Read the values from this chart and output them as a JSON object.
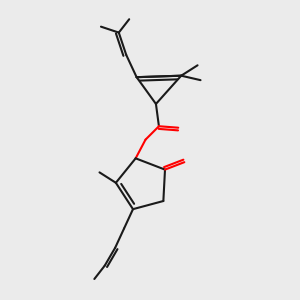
{
  "bg_color": "#ebebeb",
  "bond_color": "#1a1a1a",
  "oxygen_color": "#ff0000",
  "line_width": 1.5,
  "figsize": [
    3.0,
    3.0
  ],
  "dpi": 100,
  "xlim": [
    0,
    10
  ],
  "ylim": [
    0,
    10
  ]
}
